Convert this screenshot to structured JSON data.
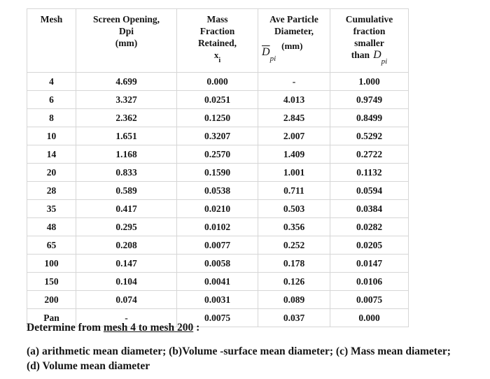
{
  "table": {
    "headers": {
      "mesh": {
        "line1": "Mesh"
      },
      "screen_opening": {
        "line1": "Screen Opening,",
        "line2": "Dpi",
        "line3": "(mm)"
      },
      "mass_fraction": {
        "line1": "Mass",
        "line2": "Fraction",
        "line3": "Retained,",
        "symbol_base": "x",
        "symbol_sub": "i"
      },
      "ave_diameter": {
        "line1": "Ave Particle",
        "line2": "Diameter,",
        "symbol_base": "D",
        "symbol_sub": "pi",
        "unit": "(mm)"
      },
      "cumulative": {
        "line1": "Cumulative",
        "line2": "fraction",
        "line3": "smaller",
        "line4_prefix": "than",
        "symbol_base": "D",
        "symbol_sub": "pi"
      }
    },
    "rows": [
      [
        "4",
        "4.699",
        "0.000",
        "-",
        "1.000"
      ],
      [
        "6",
        "3.327",
        "0.0251",
        "4.013",
        "0.9749"
      ],
      [
        "8",
        "2.362",
        "0.1250",
        "2.845",
        "0.8499"
      ],
      [
        "10",
        "1.651",
        "0.3207",
        "2.007",
        "0.5292"
      ],
      [
        "14",
        "1.168",
        "0.2570",
        "1.409",
        "0.2722"
      ],
      [
        "20",
        "0.833",
        "0.1590",
        "1.001",
        "0.1132"
      ],
      [
        "28",
        "0.589",
        "0.0538",
        "0.711",
        "0.0594"
      ],
      [
        "35",
        "0.417",
        "0.0210",
        "0.503",
        "0.0384"
      ],
      [
        "48",
        "0.295",
        "0.0102",
        "0.356",
        "0.0282"
      ],
      [
        "65",
        "0.208",
        "0.0077",
        "0.252",
        "0.0205"
      ],
      [
        "100",
        "0.147",
        "0.0058",
        "0.178",
        "0.0147"
      ],
      [
        "150",
        "0.104",
        "0.0041",
        "0.126",
        "0.0106"
      ],
      [
        "200",
        "0.074",
        "0.0031",
        "0.089",
        "0.0075"
      ],
      [
        "Pan",
        "-",
        "0.0075",
        "0.037",
        "0.000"
      ]
    ]
  },
  "question": {
    "determine_prefix": "Determine from ",
    "determine_underlined": "mesh 4 to mesh 200",
    "determine_suffix": " :",
    "parts_line1": "(a) arithmetic mean diameter; (b)Volume -surface mean diameter; (c) Mass mean diameter;",
    "parts_line2": "(d) Volume mean diameter"
  },
  "colors": {
    "background": "#ffffff",
    "text": "#151515",
    "table_border": "#d6d6d6"
  }
}
